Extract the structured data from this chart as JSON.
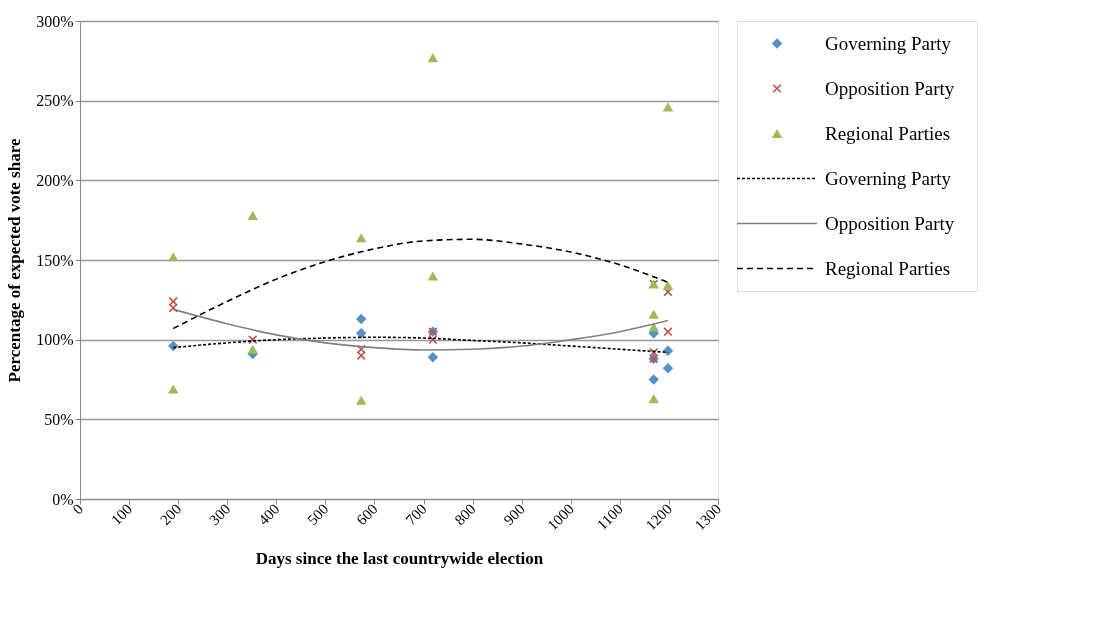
{
  "chart_data": {
    "type": "scatter",
    "xlabel": "Days since the last countrywide election",
    "ylabel": "Percentage of expected vote share",
    "xlim": [
      0,
      1300
    ],
    "xticks": [
      0,
      100,
      200,
      300,
      400,
      500,
      600,
      700,
      800,
      900,
      1000,
      1100,
      1200,
      1300
    ],
    "ylim": [
      0,
      3
    ],
    "yticks": [
      {
        "value": 0,
        "label": "0%"
      },
      {
        "value": 0.5,
        "label": "50%"
      },
      {
        "value": 1,
        "label": "100%"
      },
      {
        "value": 1.5,
        "label": "150%"
      },
      {
        "value": 2,
        "label": "200%"
      },
      {
        "value": 2.5,
        "label": "250%"
      },
      {
        "value": 3,
        "label": "300%"
      }
    ],
    "grid": "y",
    "legend": "right",
    "series": [
      {
        "name": "Governing Party",
        "marker": "diamond",
        "color": "#5590c8",
        "x": [
          190,
          352,
          573,
          573,
          719,
          719,
          1169,
          1169,
          1169,
          1198,
          1198
        ],
        "values": [
          0.96,
          0.91,
          1.13,
          1.04,
          1.05,
          0.89,
          1.04,
          0.88,
          0.75,
          0.93,
          0.82
        ]
      },
      {
        "name": "Opposition Party",
        "marker": "cross",
        "color": "#c0504d",
        "x": [
          190,
          190,
          352,
          573,
          573,
          719,
          719,
          1169,
          1169,
          1169,
          1198,
          1198
        ],
        "values": [
          1.24,
          1.2,
          1.0,
          0.94,
          0.9,
          1.05,
          1.0,
          0.92,
          0.88,
          1.35,
          1.3,
          1.05
        ]
      },
      {
        "name": "Regional Parties",
        "marker": "triangle",
        "color": "#9bbb59",
        "x": [
          190,
          190,
          352,
          352,
          573,
          573,
          719,
          719,
          1169,
          1169,
          1169,
          1169,
          1198,
          1198
        ],
        "values": [
          1.52,
          0.69,
          1.78,
          0.94,
          1.64,
          0.62,
          2.77,
          1.4,
          1.35,
          1.16,
          1.08,
          0.63,
          2.46,
          1.34
        ]
      },
      {
        "name": "Governing Party",
        "type": "line",
        "line_style": "dotted",
        "color": "#000000",
        "x": [
          190,
          300,
          400,
          500,
          600,
          700,
          800,
          900,
          1000,
          1100,
          1198
        ],
        "values": [
          0.95,
          0.98,
          1.0,
          1.01,
          1.015,
          1.01,
          0.995,
          0.98,
          0.96,
          0.94,
          0.92
        ]
      },
      {
        "name": "Opposition Party",
        "type": "line",
        "line_style": "solid",
        "color": "#808080",
        "x": [
          190,
          300,
          400,
          500,
          600,
          700,
          800,
          900,
          1000,
          1100,
          1198
        ],
        "values": [
          1.19,
          1.1,
          1.03,
          0.98,
          0.95,
          0.935,
          0.94,
          0.96,
          1.0,
          1.05,
          1.12
        ]
      },
      {
        "name": "Regional Parties",
        "type": "line",
        "line_style": "dashed",
        "color": "#000000",
        "x": [
          190,
          300,
          400,
          500,
          600,
          700,
          800,
          900,
          1000,
          1100,
          1198
        ],
        "values": [
          1.07,
          1.24,
          1.38,
          1.49,
          1.57,
          1.62,
          1.63,
          1.6,
          1.55,
          1.47,
          1.36
        ]
      }
    ]
  }
}
